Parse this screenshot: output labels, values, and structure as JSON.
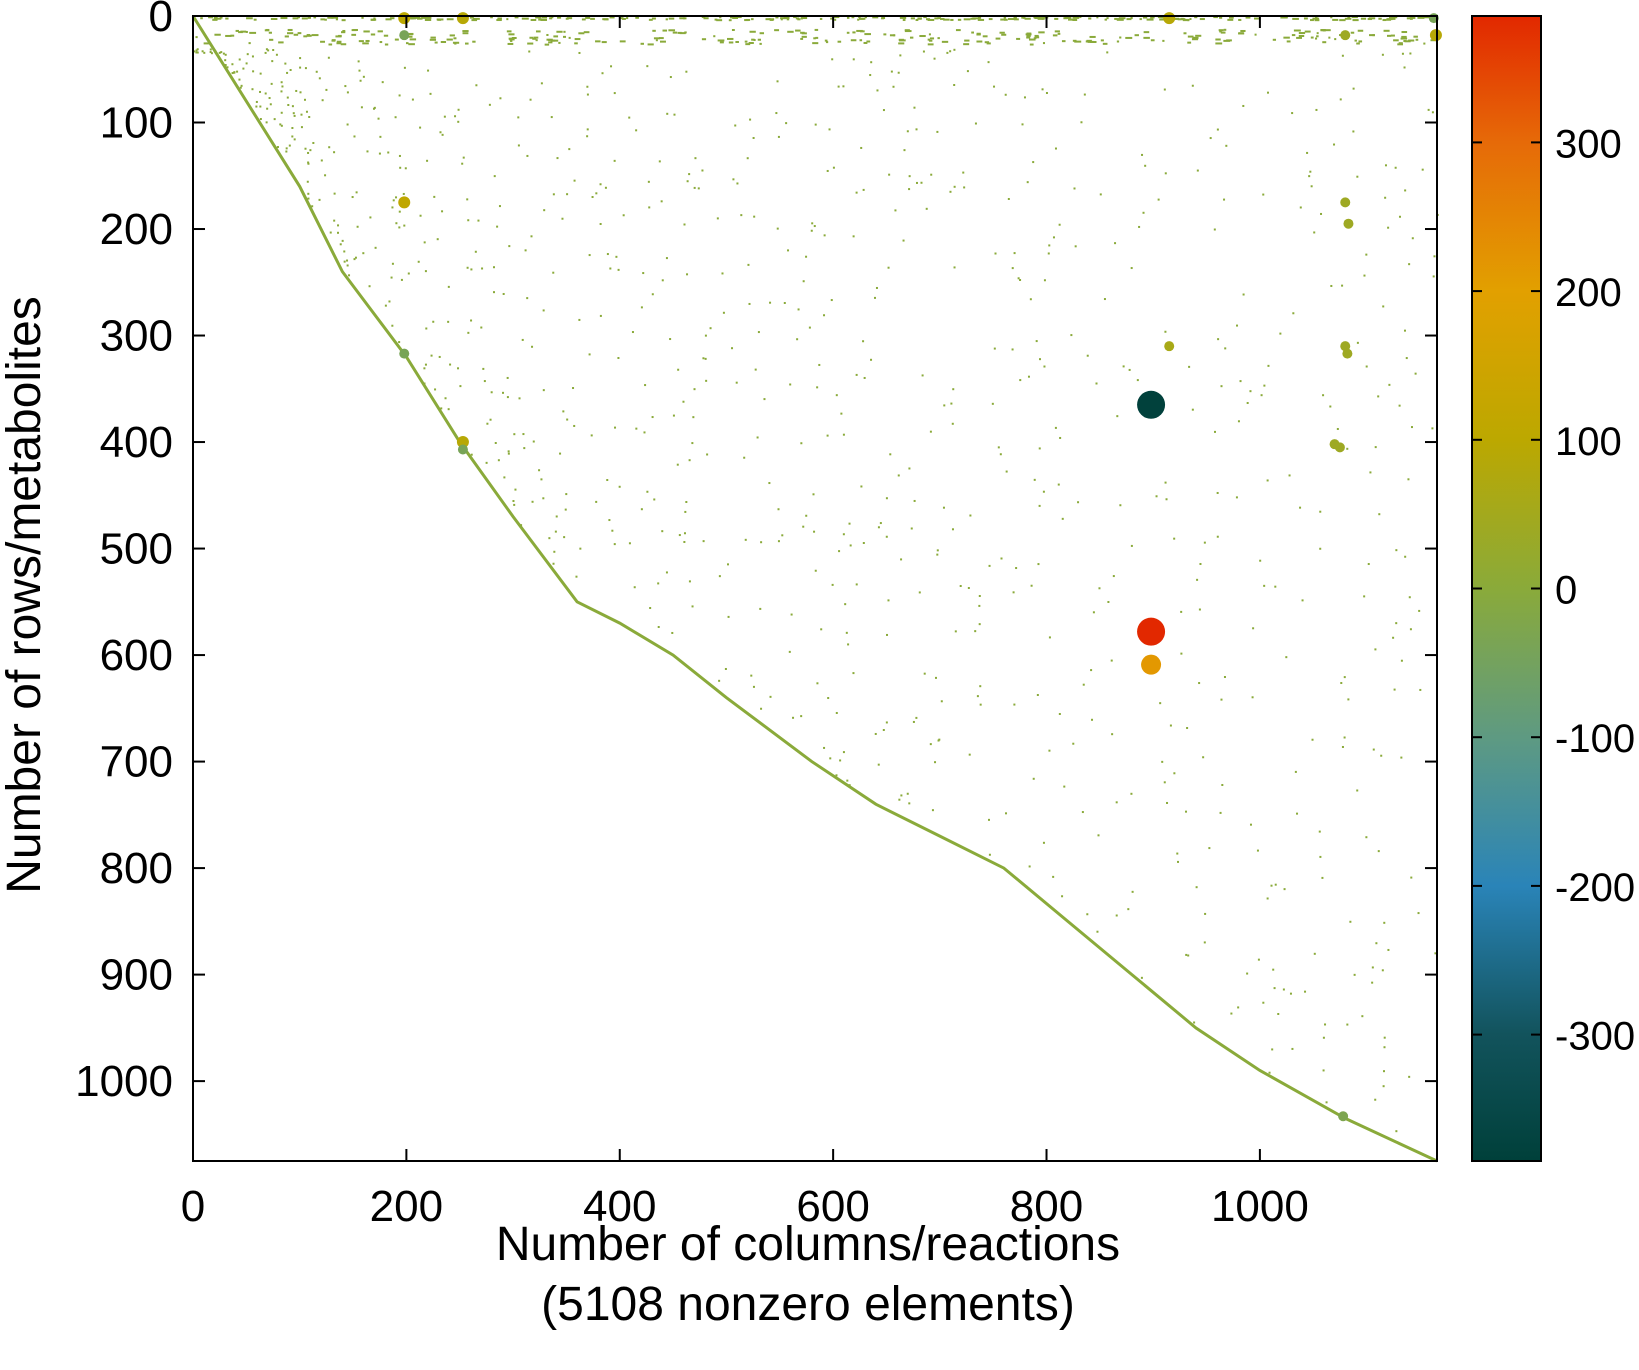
{
  "chart_data": {
    "type": "scatter",
    "title": "",
    "xlabel": "Number of columns/reactions",
    "xlabel2": "(5108 nonzero elements)",
    "ylabel": "Number of rows/metabolites",
    "xlim": [
      0,
      1166
    ],
    "ylim": [
      1075,
      0
    ],
    "y_inverted": true,
    "grid": false,
    "legend": "none",
    "x_ticks": [
      0,
      200,
      400,
      600,
      800,
      1000
    ],
    "y_ticks": [
      0,
      100,
      200,
      300,
      400,
      500,
      600,
      700,
      800,
      900,
      1000
    ],
    "colorbar": {
      "range": [
        -385,
        385
      ],
      "ticks": [
        -300,
        -200,
        -100,
        0,
        100,
        200,
        300
      ],
      "palette": [
        {
          "value": -385,
          "color": "#00403a"
        },
        {
          "value": -300,
          "color": "#12535c"
        },
        {
          "value": -200,
          "color": "#2a84b8"
        },
        {
          "value": -100,
          "color": "#5e9a82"
        },
        {
          "value": 0,
          "color": "#8aaa3a"
        },
        {
          "value": 100,
          "color": "#bca800"
        },
        {
          "value": 200,
          "color": "#e2a000"
        },
        {
          "value": 300,
          "color": "#e66a08"
        },
        {
          "value": 385,
          "color": "#e22800"
        }
      ]
    },
    "diagonal_band": [
      [
        0,
        0
      ],
      [
        100,
        160
      ],
      [
        140,
        240
      ],
      [
        200,
        320
      ],
      [
        250,
        400
      ],
      [
        300,
        470
      ],
      [
        360,
        550
      ],
      [
        400,
        570
      ],
      [
        450,
        600
      ],
      [
        500,
        640
      ],
      [
        580,
        700
      ],
      [
        640,
        740
      ],
      [
        700,
        770
      ],
      [
        760,
        800
      ],
      [
        820,
        850
      ],
      [
        880,
        900
      ],
      [
        940,
        950
      ],
      [
        1000,
        990
      ],
      [
        1080,
        1035
      ],
      [
        1166,
        1075
      ]
    ],
    "points": [
      {
        "x": 898,
        "y": 365,
        "value": -380
      },
      {
        "x": 898,
        "y": 578,
        "value": 385
      },
      {
        "x": 898,
        "y": 609,
        "value": 215
      },
      {
        "x": 198,
        "y": 2,
        "value": 100
      },
      {
        "x": 253,
        "y": 2,
        "value": 90
      },
      {
        "x": 915,
        "y": 2,
        "value": 90
      },
      {
        "x": 1163,
        "y": 2,
        "value": -40
      },
      {
        "x": 198,
        "y": 18,
        "value": -40
      },
      {
        "x": 1080,
        "y": 18,
        "value": 40
      },
      {
        "x": 1165,
        "y": 18,
        "value": 90
      },
      {
        "x": 198,
        "y": 175,
        "value": 110
      },
      {
        "x": 1080,
        "y": 175,
        "value": 40
      },
      {
        "x": 1083,
        "y": 195,
        "value": 40
      },
      {
        "x": 198,
        "y": 317,
        "value": -40
      },
      {
        "x": 915,
        "y": 310,
        "value": 60
      },
      {
        "x": 1080,
        "y": 310,
        "value": 40
      },
      {
        "x": 1082,
        "y": 317,
        "value": 40
      },
      {
        "x": 253,
        "y": 400,
        "value": 90
      },
      {
        "x": 253,
        "y": 407,
        "value": -40
      },
      {
        "x": 1070,
        "y": 402,
        "value": 40
      },
      {
        "x": 1075,
        "y": 405,
        "value": 40
      },
      {
        "x": 1078,
        "y": 1033,
        "value": -30
      }
    ]
  }
}
